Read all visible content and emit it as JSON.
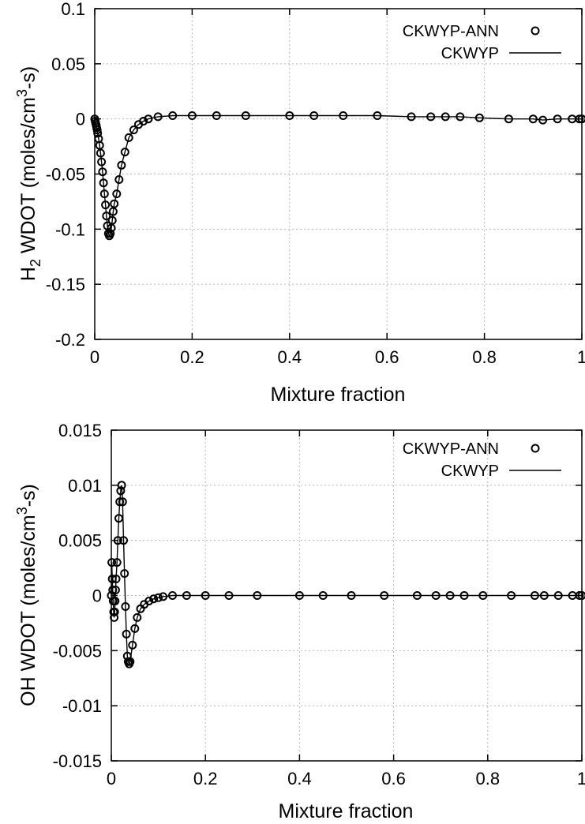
{
  "chart_data": [
    {
      "type": "line",
      "xlabel": "Mixture fraction",
      "ylabel": "H",
      "ylabel_sub": "2",
      "ylabel_mid": " WDOT (moles/cm",
      "ylabel_sup": "3",
      "ylabel_end": "-s)",
      "xlim": [
        0,
        1
      ],
      "ylim": [
        -0.2,
        0.1
      ],
      "xticks": [
        0,
        0.2,
        0.4,
        0.6,
        0.8,
        1
      ],
      "xtick_labels": [
        "0",
        "0.2",
        "0.4",
        "0.6",
        "0.8",
        "1"
      ],
      "yticks": [
        -0.2,
        -0.15,
        -0.1,
        -0.05,
        0,
        0.05,
        0.1
      ],
      "ytick_labels": [
        "-0.2",
        "-0.15",
        "-0.1",
        "-0.05",
        "0",
        "0.05",
        "0.1"
      ],
      "grid": true,
      "legend_position": "top-right",
      "series": [
        {
          "name": "CKWYP-ANN",
          "style": "markers",
          "x": [
            0,
            0.001,
            0.002,
            0.003,
            0.004,
            0.005,
            0.006,
            0.008,
            0.01,
            0.012,
            0.014,
            0.016,
            0.018,
            0.02,
            0.022,
            0.024,
            0.026,
            0.028,
            0.03,
            0.032,
            0.034,
            0.036,
            0.038,
            0.04,
            0.045,
            0.05,
            0.055,
            0.062,
            0.07,
            0.08,
            0.09,
            0.1,
            0.11,
            0.13,
            0.16,
            0.2,
            0.25,
            0.31,
            0.4,
            0.45,
            0.51,
            0.58,
            0.65,
            0.69,
            0.72,
            0.75,
            0.79,
            0.85,
            0.9,
            0.92,
            0.95,
            0.98,
            0.995,
            1
          ],
          "y": [
            0,
            -0.002,
            -0.004,
            -0.006,
            -0.008,
            -0.01,
            -0.013,
            -0.018,
            -0.024,
            -0.031,
            -0.039,
            -0.048,
            -0.058,
            -0.068,
            -0.078,
            -0.088,
            -0.097,
            -0.104,
            -0.106,
            -0.104,
            -0.099,
            -0.092,
            -0.084,
            -0.077,
            -0.068,
            -0.055,
            -0.042,
            -0.03,
            -0.017,
            -0.01,
            -0.005,
            -0.002,
            0,
            0.002,
            0.003,
            0.003,
            0.003,
            0.003,
            0.003,
            0.003,
            0.003,
            0.003,
            0.002,
            0.002,
            0.002,
            0.002,
            0.001,
            0,
            0,
            -0.001,
            0,
            0,
            0,
            0
          ]
        },
        {
          "name": "CKWYP",
          "style": "line",
          "x": [
            0,
            0.001,
            0.002,
            0.003,
            0.004,
            0.005,
            0.006,
            0.008,
            0.01,
            0.012,
            0.014,
            0.016,
            0.018,
            0.02,
            0.022,
            0.024,
            0.026,
            0.028,
            0.03,
            0.032,
            0.034,
            0.036,
            0.038,
            0.04,
            0.045,
            0.05,
            0.055,
            0.062,
            0.07,
            0.08,
            0.09,
            0.1,
            0.11,
            0.13,
            0.16,
            0.2,
            0.25,
            0.31,
            0.4,
            0.45,
            0.51,
            0.58,
            0.65,
            0.69,
            0.72,
            0.75,
            0.79,
            0.85,
            0.9,
            0.92,
            0.95,
            0.98,
            0.995,
            1
          ],
          "y": [
            0,
            -0.002,
            -0.004,
            -0.006,
            -0.008,
            -0.01,
            -0.013,
            -0.018,
            -0.024,
            -0.031,
            -0.039,
            -0.048,
            -0.058,
            -0.068,
            -0.078,
            -0.088,
            -0.097,
            -0.104,
            -0.106,
            -0.104,
            -0.099,
            -0.092,
            -0.084,
            -0.077,
            -0.068,
            -0.055,
            -0.042,
            -0.03,
            -0.017,
            -0.01,
            -0.005,
            -0.002,
            0,
            0.002,
            0.003,
            0.003,
            0.003,
            0.003,
            0.003,
            0.003,
            0.003,
            0.003,
            0.002,
            0.002,
            0.002,
            0.002,
            0.001,
            0,
            0,
            -0.001,
            0,
            0,
            0,
            0
          ]
        }
      ]
    },
    {
      "type": "line",
      "xlabel": "Mixture fraction",
      "ylabel": "OH",
      "ylabel_sub": "",
      "ylabel_mid": " WDOT (moles/cm",
      "ylabel_sup": "3",
      "ylabel_end": "-s)",
      "xlim": [
        0,
        1
      ],
      "ylim": [
        -0.015,
        0.015
      ],
      "xticks": [
        0,
        0.2,
        0.4,
        0.6,
        0.8,
        1
      ],
      "xtick_labels": [
        "0",
        "0.2",
        "0.4",
        "0.6",
        "0.8",
        "1"
      ],
      "yticks": [
        -0.015,
        -0.01,
        -0.005,
        0,
        0.005,
        0.01,
        0.015
      ],
      "ytick_labels": [
        "-0.015",
        "-0.01",
        "-0.005",
        "0",
        "0.005",
        "0.01",
        "0.015"
      ],
      "grid": true,
      "legend_position": "top-right",
      "series": [
        {
          "name": "CKWYP-ANN",
          "style": "markers",
          "x": [
            0,
            0.001,
            0.002,
            0.003,
            0.004,
            0.005,
            0.006,
            0.007,
            0.008,
            0.009,
            0.01,
            0.012,
            0.014,
            0.016,
            0.018,
            0.02,
            0.022,
            0.024,
            0.026,
            0.028,
            0.03,
            0.032,
            0.034,
            0.036,
            0.038,
            0.04,
            0.045,
            0.05,
            0.055,
            0.062,
            0.07,
            0.08,
            0.09,
            0.1,
            0.11,
            0.13,
            0.16,
            0.2,
            0.25,
            0.31,
            0.4,
            0.45,
            0.51,
            0.58,
            0.65,
            0.69,
            0.72,
            0.75,
            0.79,
            0.85,
            0.9,
            0.92,
            0.95,
            0.98,
            0.995,
            1
          ],
          "y": [
            0,
            0.003,
            0.0015,
            0.0005,
            -0.0005,
            -0.0015,
            -0.002,
            -0.0015,
            -0.0005,
            0.0005,
            0.0015,
            0.003,
            0.005,
            0.007,
            0.0085,
            0.0095,
            0.01,
            0.0085,
            0.005,
            0.002,
            -0.001,
            -0.0035,
            -0.0055,
            -0.006,
            -0.0062,
            -0.006,
            -0.0045,
            -0.003,
            -0.002,
            -0.0012,
            -0.0008,
            -0.0005,
            -0.0003,
            -0.0002,
            -0.0001,
            0,
            0,
            0,
            0,
            0,
            0,
            0,
            0,
            0,
            0,
            0,
            0,
            0,
            0,
            0,
            0,
            0,
            0,
            0,
            0,
            0
          ]
        },
        {
          "name": "CKWYP",
          "style": "line",
          "x": [
            0,
            0.001,
            0.002,
            0.003,
            0.004,
            0.005,
            0.006,
            0.007,
            0.008,
            0.009,
            0.01,
            0.012,
            0.014,
            0.016,
            0.018,
            0.02,
            0.022,
            0.024,
            0.026,
            0.028,
            0.03,
            0.032,
            0.034,
            0.036,
            0.038,
            0.04,
            0.045,
            0.05,
            0.055,
            0.062,
            0.07,
            0.08,
            0.09,
            0.1,
            0.11,
            0.13,
            0.16,
            0.2,
            0.25,
            0.31,
            0.4,
            0.45,
            0.51,
            0.58,
            0.65,
            0.69,
            0.72,
            0.75,
            0.79,
            0.85,
            0.9,
            0.92,
            0.95,
            0.98,
            0.995,
            1
          ],
          "y": [
            0,
            0.003,
            0.0015,
            0.0005,
            -0.0005,
            -0.0015,
            -0.002,
            -0.0015,
            -0.0005,
            0.0005,
            0.0015,
            0.003,
            0.005,
            0.007,
            0.0085,
            0.0095,
            0.01,
            0.0085,
            0.005,
            0.002,
            -0.001,
            -0.0035,
            -0.0055,
            -0.006,
            -0.0062,
            -0.006,
            -0.0045,
            -0.003,
            -0.002,
            -0.0012,
            -0.0008,
            -0.0005,
            -0.0003,
            -0.0002,
            -0.0001,
            0,
            0,
            0,
            0,
            0,
            0,
            0,
            0,
            0,
            0,
            0,
            0,
            0,
            0,
            0,
            0,
            0,
            0,
            0,
            0,
            0
          ]
        }
      ]
    }
  ]
}
